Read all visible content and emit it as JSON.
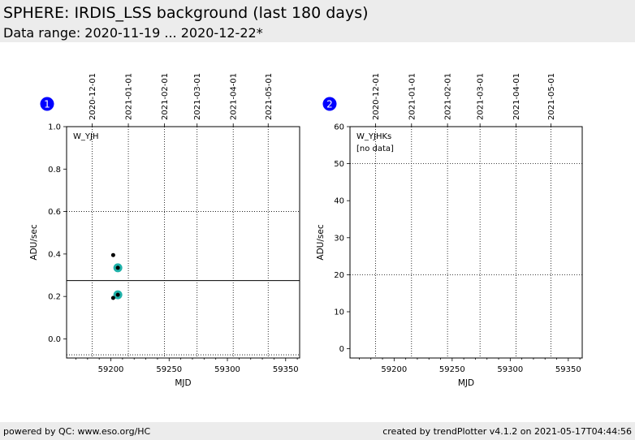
{
  "header": {
    "title": "SPHERE: IRDIS_LSS background (last 180 days)",
    "subtitle": "Data range: 2020-11-19 ... 2020-12-22*"
  },
  "footer": {
    "left": "powered by QC: www.eso.org/HC",
    "right": "created by trendPlotter v4.1.2 on 2021-05-17T04:44:56"
  },
  "colors": {
    "badge": "#0000ff",
    "marker_highlight": "#20b2aa",
    "point": "#000000"
  },
  "chart_data": [
    {
      "type": "scatter",
      "badge": "1",
      "label": "W_YJH",
      "note": "",
      "xlabel": "MJD",
      "ylabel": "ADU/sec",
      "xlim": [
        59162,
        59362
      ],
      "ylim": [
        -0.09,
        1.0
      ],
      "x_ticks": [
        59200,
        59250,
        59300,
        59350
      ],
      "y_ticks": [
        "0.0",
        "0.2",
        "0.4",
        "0.6",
        "0.8",
        "1.0"
      ],
      "hgrid": [
        0.6
      ],
      "ref_line": 0.275,
      "bottom_ref": -0.075,
      "date_ticks": [
        {
          "label": "2020-12-01",
          "mjd": 59184
        },
        {
          "label": "2021-01-01",
          "mjd": 59215
        },
        {
          "label": "2021-02-01",
          "mjd": 59246
        },
        {
          "label": "2021-03-01",
          "mjd": 59274
        },
        {
          "label": "2021-04-01",
          "mjd": 59305
        },
        {
          "label": "2021-05-01",
          "mjd": 59335
        }
      ],
      "points": [
        {
          "x": 59202,
          "y": 0.395
        },
        {
          "x": 59202,
          "y": 0.193
        }
      ],
      "highlight_points": [
        {
          "x": 59206,
          "y": 0.335
        },
        {
          "x": 59206,
          "y": 0.208
        }
      ]
    },
    {
      "type": "scatter",
      "badge": "2",
      "label": "W_YJHKs",
      "note": "[no data]",
      "xlabel": "MJD",
      "ylabel": "ADU/sec",
      "xlim": [
        59162,
        59362
      ],
      "ylim": [
        -2.5,
        60
      ],
      "x_ticks": [
        59200,
        59250,
        59300,
        59350
      ],
      "y_ticks": [
        "0",
        "10",
        "20",
        "30",
        "40",
        "50",
        "60"
      ],
      "hgrid": [
        20,
        50
      ],
      "ref_line": null,
      "bottom_ref": null,
      "date_ticks": [
        {
          "label": "2020-12-01",
          "mjd": 59184
        },
        {
          "label": "2021-01-01",
          "mjd": 59215
        },
        {
          "label": "2021-02-01",
          "mjd": 59246
        },
        {
          "label": "2021-03-01",
          "mjd": 59274
        },
        {
          "label": "2021-04-01",
          "mjd": 59305
        },
        {
          "label": "2021-05-01",
          "mjd": 59335
        }
      ],
      "points": [],
      "highlight_points": []
    }
  ]
}
